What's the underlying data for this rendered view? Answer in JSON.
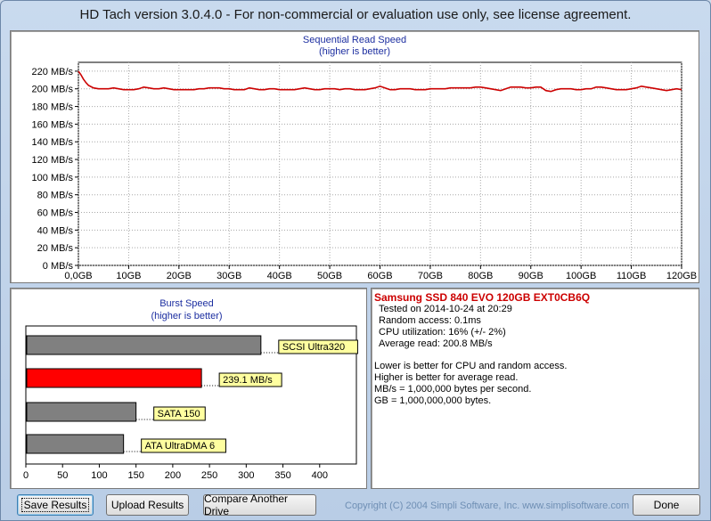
{
  "window": {
    "title": "HD Tach version 3.0.4.0  - For non-commercial or evaluation use only, see license agreement."
  },
  "sequential": {
    "title": "Sequential Read Speed",
    "subtitle": "(higher is better)",
    "color": "#cc0000",
    "chart_data": {
      "type": "line",
      "title": "Sequential Read Speed",
      "subtitle": "(higher is better)",
      "y_tick_labels": [
        "0 MB/s",
        "20 MB/s",
        "40 MB/s",
        "60 MB/s",
        "80 MB/s",
        "100 MB/s",
        "120 MB/s",
        "140 MB/s",
        "160 MB/s",
        "180 MB/s",
        "200 MB/s",
        "220 MB/s"
      ],
      "x_tick_labels": [
        "0,0GB",
        "10GB",
        "20GB",
        "30GB",
        "40GB",
        "50GB",
        "60GB",
        "70GB",
        "80GB",
        "90GB",
        "100GB",
        "110GB",
        "120GB"
      ],
      "xlim": [
        0,
        120
      ],
      "ylim": [
        0,
        230
      ],
      "grid": true,
      "series": [
        {
          "x": [
            0,
            0.5,
            1,
            1.5,
            2,
            3,
            4,
            5,
            6,
            7,
            8,
            9,
            10,
            11,
            12,
            13,
            14,
            15,
            16,
            17,
            18,
            19,
            20,
            21,
            22,
            23,
            24,
            25,
            26,
            27,
            28,
            29,
            30,
            31,
            32,
            33,
            34,
            35,
            36,
            37,
            38,
            39,
            40,
            41,
            42,
            43,
            44,
            45,
            46,
            47,
            48,
            49,
            50,
            51,
            52,
            53,
            54,
            55,
            56,
            57,
            58,
            59,
            60,
            61,
            62,
            63,
            64,
            65,
            66,
            67,
            68,
            69,
            70,
            71,
            72,
            73,
            74,
            75,
            76,
            77,
            78,
            79,
            80,
            81,
            82,
            83,
            84,
            85,
            86,
            87,
            88,
            89,
            90,
            91,
            92,
            93,
            94,
            95,
            96,
            97,
            98,
            99,
            100,
            101,
            102,
            103,
            104,
            105,
            106,
            107,
            108,
            109,
            110,
            111,
            112,
            113,
            114,
            115,
            116,
            117,
            118,
            119,
            120
          ],
          "y": [
            220,
            216,
            211,
            207,
            204,
            201,
            200,
            200,
            200,
            201,
            200,
            199,
            199,
            199,
            200,
            202,
            201,
            200,
            200,
            201,
            200,
            199,
            199,
            199,
            199,
            199,
            200,
            200,
            201,
            201,
            201,
            200,
            200,
            199,
            199,
            199,
            201,
            200,
            199,
            199,
            200,
            200,
            199,
            199,
            199,
            199,
            200,
            201,
            200,
            199,
            199,
            200,
            200,
            200,
            199,
            200,
            200,
            199,
            199,
            199,
            200,
            201,
            203,
            201,
            199,
            199,
            200,
            200,
            200,
            199,
            199,
            199,
            200,
            200,
            200,
            200,
            201,
            201,
            201,
            201,
            201,
            202,
            202,
            201,
            200,
            199,
            198,
            200,
            202,
            202,
            202,
            201,
            201,
            202,
            202,
            198,
            197,
            199,
            200,
            200,
            200,
            199,
            199,
            200,
            200,
            202,
            202,
            201,
            200,
            199,
            199,
            199,
            200,
            201,
            203,
            202,
            201,
            200,
            199,
            198,
            199,
            200,
            199
          ]
        }
      ]
    }
  },
  "burst": {
    "title": "Burst Speed",
    "subtitle": "(higher is better)",
    "chart_data": {
      "type": "bar",
      "orientation": "horizontal",
      "title": "Burst Speed",
      "subtitle": "(higher is better)",
      "xlim": [
        0,
        450
      ],
      "x_tick_labels": [
        "0",
        "50",
        "100",
        "150",
        "200",
        "250",
        "300",
        "350",
        "400"
      ],
      "categories": [
        "SCSI Ultra320",
        "239.1 MB/s",
        "SATA 150",
        "ATA UltraDMA 6"
      ],
      "values": [
        320,
        239.1,
        150,
        133
      ],
      "colors": [
        "#808080",
        "#ff0000",
        "#808080",
        "#808080"
      ]
    }
  },
  "info": {
    "drive_name": "Samsung SSD 840 EVO 120GB EXT0CB6Q",
    "tested_on": "Tested on 2014-10-24 at 20:29",
    "random_access": "Random access: 0.1ms",
    "cpu_utilization": "CPU utilization: 16% (+/- 2%)",
    "average_read": "Average read: 200.8 MB/s",
    "notes": [
      "Lower is better for CPU and random access.",
      "Higher is better for average read.",
      "MB/s = 1,000,000 bytes per second.",
      "GB = 1,000,000,000 bytes."
    ]
  },
  "buttons": {
    "save": "Save Results",
    "upload": "Upload Results",
    "compare": "Compare Another Drive",
    "done": "Done"
  },
  "footer": {
    "copyright": "Copyright (C) 2004 Simpli Software, Inc. www.simplisoftware.com"
  }
}
